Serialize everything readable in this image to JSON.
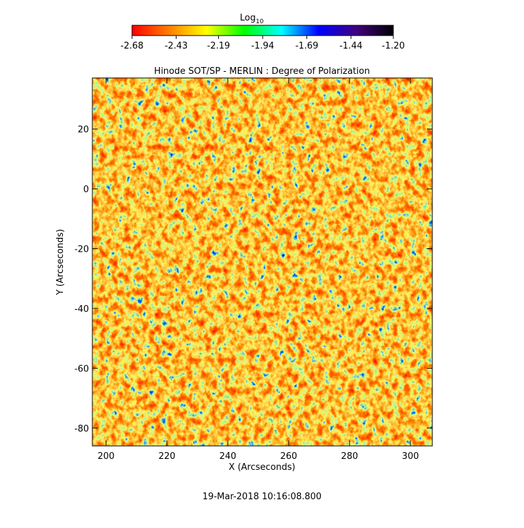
{
  "chart_data": {
    "type": "heatmap",
    "title": "Hinode SOT/SP - MERLIN : Degree of Polarization",
    "xlabel": "X (Arcseconds)",
    "ylabel": "Y (Arcseconds)",
    "xlim": [
      195.5,
      307.2
    ],
    "xticks": [
      200,
      220,
      240,
      260,
      280,
      300
    ],
    "ylim": [
      -86,
      37.1
    ],
    "yticks": [
      20,
      0,
      -20,
      -40,
      -60,
      -80
    ],
    "colorbar": {
      "title": "Log",
      "subscript": "10",
      "lim": [
        -2.68,
        -1.2
      ],
      "ticks": [
        -2.68,
        -2.43,
        -2.19,
        -1.94,
        -1.69,
        -1.44,
        {
          "value": -1.2,
          "label": "-1.20"
        }
      ],
      "colors": [
        "#ff0000",
        "#ff8000",
        "#ffff00",
        "#00ff00",
        "#00ffff",
        "#0000ff",
        "#400080",
        "#000000"
      ]
    },
    "footer": "19-Mar-2018 10:16:08.800"
  }
}
